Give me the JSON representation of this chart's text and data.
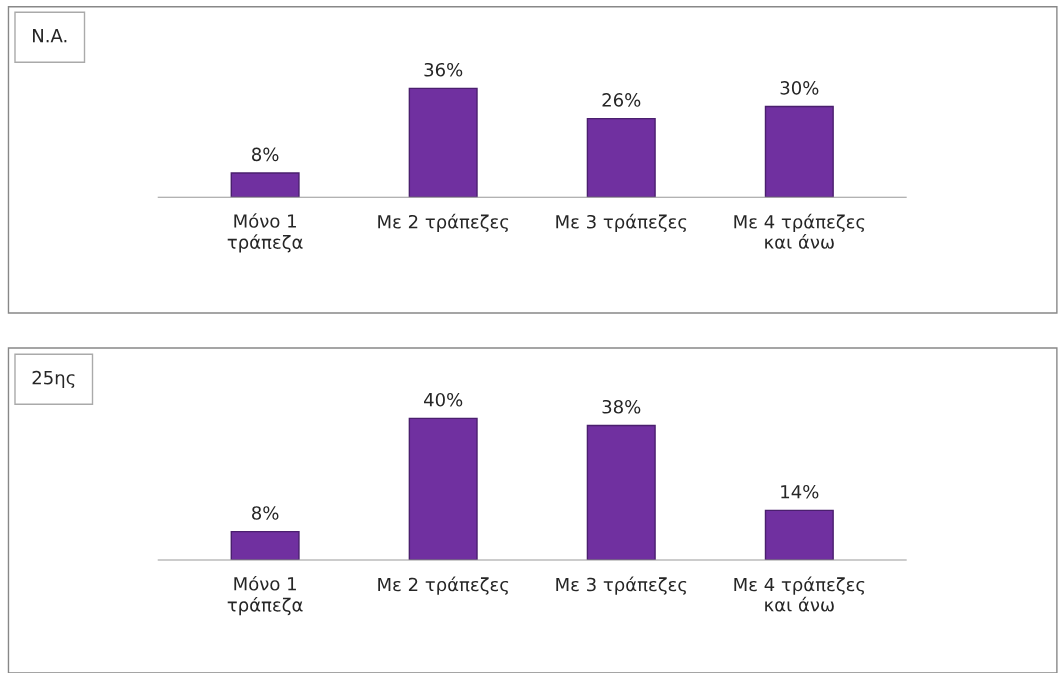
{
  "chart_data": [
    {
      "type": "bar",
      "title": "N.A.",
      "categories": [
        "Μόνο 1\nτράπεζα",
        "Με 2 τράπεζες",
        "Με 3 τράπεζες",
        "Με 4 τράπεζες\nκαι άνω"
      ],
      "values": [
        8,
        36,
        26,
        30
      ],
      "value_labels": [
        "8%",
        "36%",
        "26%",
        "30%"
      ],
      "color": "#7030a0",
      "grid": false,
      "legend": false
    },
    {
      "type": "bar",
      "title": "25ης",
      "categories": [
        "Μόνο 1\nτράπεζα",
        "Με 2 τράπεζες",
        "Με 3 τράπεζες",
        "Με 4 τράπεζες\nκαι άνω"
      ],
      "values": [
        8,
        40,
        38,
        14
      ],
      "value_labels": [
        "8%",
        "40%",
        "38%",
        "14%"
      ],
      "color": "#7030a0",
      "grid": false,
      "legend": false
    }
  ]
}
